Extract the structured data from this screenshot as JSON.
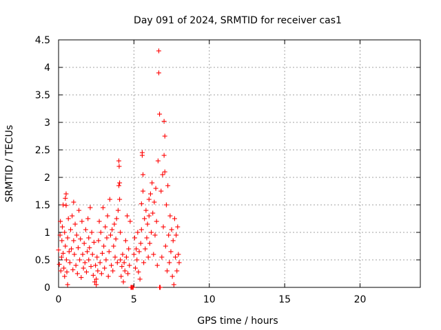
{
  "chart_data": {
    "type": "scatter",
    "title": "Day 091 of 2024, SRMTID for receiver cas1",
    "xlabel": "GPS time / hours",
    "ylabel": "SRMTID / TECUs",
    "xlim": [
      0,
      24
    ],
    "ylim": [
      0,
      4.5
    ],
    "xticks": [
      0,
      5,
      10,
      15,
      20
    ],
    "xtick_labels": [
      "0",
      "5",
      "10",
      "15",
      "20"
    ],
    "yticks": [
      0,
      0.5,
      1,
      1.5,
      2,
      2.5,
      3,
      3.5,
      4,
      4.5
    ],
    "ytick_labels": [
      "0",
      "0.5",
      "1",
      "1.5",
      "2",
      "2.5",
      "3",
      "3.5",
      "4",
      "4.5"
    ],
    "grid": true,
    "marker": "+",
    "marker_color": "#ff0000",
    "series": [
      {
        "name": "SRMTID",
        "points": [
          [
            0.0,
            0.68
          ],
          [
            0.05,
            0.42
          ],
          [
            0.1,
            0.95
          ],
          [
            0.12,
            1.2
          ],
          [
            0.15,
            0.3
          ],
          [
            0.2,
            0.55
          ],
          [
            0.22,
            0.85
          ],
          [
            0.25,
            1.1
          ],
          [
            0.3,
            1.5
          ],
          [
            0.3,
            0.62
          ],
          [
            0.35,
            0.35
          ],
          [
            0.4,
            0.2
          ],
          [
            0.4,
            1.0
          ],
          [
            0.45,
            1.62
          ],
          [
            0.45,
            0.75
          ],
          [
            0.5,
            1.7
          ],
          [
            0.5,
            1.49
          ],
          [
            0.52,
            0.5
          ],
          [
            0.55,
            0.28
          ],
          [
            0.6,
            0.9
          ],
          [
            0.6,
            0.05
          ],
          [
            0.65,
            1.25
          ],
          [
            0.7,
            0.65
          ],
          [
            0.75,
            0.45
          ],
          [
            0.8,
            1.05
          ],
          [
            0.85,
            0.7
          ],
          [
            0.9,
            1.3
          ],
          [
            0.95,
            0.32
          ],
          [
            1.0,
            0.85
          ],
          [
            1.0,
            1.55
          ],
          [
            1.05,
            0.6
          ],
          [
            1.1,
            1.15
          ],
          [
            1.15,
            0.4
          ],
          [
            1.2,
            0.95
          ],
          [
            1.25,
            0.25
          ],
          [
            1.3,
            0.72
          ],
          [
            1.35,
            1.4
          ],
          [
            1.4,
            0.5
          ],
          [
            1.45,
            0.88
          ],
          [
            1.5,
            0.18
          ],
          [
            1.55,
            1.2
          ],
          [
            1.6,
            0.6
          ],
          [
            1.65,
            0.35
          ],
          [
            1.7,
            0.8
          ],
          [
            1.75,
            0.45
          ],
          [
            1.8,
            1.05
          ],
          [
            1.85,
            0.28
          ],
          [
            1.9,
            0.65
          ],
          [
            1.95,
            1.25
          ],
          [
            2.0,
            0.5
          ],
          [
            2.0,
            0.9
          ],
          [
            2.05,
            0.72
          ],
          [
            2.1,
            1.45
          ],
          [
            2.15,
            0.38
          ],
          [
            2.2,
            1.0
          ],
          [
            2.25,
            0.6
          ],
          [
            2.3,
            0.22
          ],
          [
            2.35,
            0.82
          ],
          [
            2.4,
            0.1
          ],
          [
            2.45,
            0.4
          ],
          [
            2.5,
            0.15
          ],
          [
            2.5,
            0.05
          ],
          [
            2.55,
            0.55
          ],
          [
            2.6,
            0.3
          ],
          [
            2.65,
            0.85
          ],
          [
            2.7,
            1.2
          ],
          [
            2.75,
            0.45
          ],
          [
            2.8,
            1.0
          ],
          [
            2.85,
            0.25
          ],
          [
            2.9,
            0.62
          ],
          [
            2.95,
            1.45
          ],
          [
            3.0,
            0.75
          ],
          [
            3.05,
            0.35
          ],
          [
            3.1,
            1.1
          ],
          [
            3.15,
            0.5
          ],
          [
            3.2,
            0.9
          ],
          [
            3.25,
            1.3
          ],
          [
            3.3,
            0.2
          ],
          [
            3.35,
            0.65
          ],
          [
            3.4,
            1.6
          ],
          [
            3.45,
            0.95
          ],
          [
            3.5,
            0.4
          ],
          [
            3.55,
            1.05
          ],
          [
            3.6,
            0.3
          ],
          [
            3.65,
            0.75
          ],
          [
            3.7,
            1.15
          ],
          [
            3.75,
            0.55
          ],
          [
            3.8,
            0.88
          ],
          [
            3.85,
            1.25
          ],
          [
            3.9,
            0.45
          ],
          [
            3.95,
            1.4
          ],
          [
            4.0,
            2.3
          ],
          [
            4.0,
            1.85
          ],
          [
            4.02,
            2.2
          ],
          [
            4.05,
            1.9
          ],
          [
            4.05,
            1.6
          ],
          [
            4.1,
            0.5
          ],
          [
            4.1,
            1.0
          ],
          [
            4.15,
            0.2
          ],
          [
            4.2,
            0.38
          ],
          [
            4.25,
            0.6
          ],
          [
            4.3,
            0.1
          ],
          [
            4.35,
            0.45
          ],
          [
            4.4,
            0.3
          ],
          [
            4.45,
            0.85
          ],
          [
            4.5,
            0.55
          ],
          [
            4.55,
            1.3
          ],
          [
            4.6,
            0.25
          ],
          [
            4.65,
            0.7
          ],
          [
            4.7,
            0.4
          ],
          [
            4.75,
            1.2
          ],
          [
            4.8,
            0.0
          ],
          [
            4.85,
            0.0
          ],
          [
            4.9,
            0.0
          ],
          [
            4.95,
            0.0
          ],
          [
            5.0,
            0.6
          ],
          [
            5.05,
            0.9
          ],
          [
            5.1,
            0.35
          ],
          [
            5.15,
            0.7
          ],
          [
            5.2,
            0.5
          ],
          [
            5.25,
            1.0
          ],
          [
            5.3,
            0.28
          ],
          [
            5.35,
            0.65
          ],
          [
            5.4,
            0.15
          ],
          [
            5.45,
            0.8
          ],
          [
            5.5,
            1.05
          ],
          [
            5.5,
            1.52
          ],
          [
            5.55,
            2.45
          ],
          [
            5.55,
            2.4
          ],
          [
            5.6,
            2.05
          ],
          [
            5.6,
            1.75
          ],
          [
            5.65,
            0.45
          ],
          [
            5.7,
            1.25
          ],
          [
            5.75,
            0.7
          ],
          [
            5.8,
            1.4
          ],
          [
            5.85,
            0.9
          ],
          [
            5.9,
            1.15
          ],
          [
            5.95,
            0.55
          ],
          [
            6.0,
            1.6
          ],
          [
            6.0,
            1.3
          ],
          [
            6.05,
            0.8
          ],
          [
            6.1,
            1.7
          ],
          [
            6.15,
            1.0
          ],
          [
            6.2,
            1.9
          ],
          [
            6.25,
            1.35
          ],
          [
            6.3,
            0.6
          ],
          [
            6.35,
            1.55
          ],
          [
            6.4,
            0.95
          ],
          [
            6.45,
            1.8
          ],
          [
            6.5,
            1.2
          ],
          [
            6.55,
            0.4
          ],
          [
            6.6,
            2.3
          ],
          [
            6.65,
            4.3
          ],
          [
            6.65,
            3.9
          ],
          [
            6.7,
            3.15
          ],
          [
            6.7,
            0.0
          ],
          [
            6.75,
            0.0
          ],
          [
            6.8,
            1.75
          ],
          [
            6.85,
            0.55
          ],
          [
            6.9,
            2.05
          ],
          [
            6.95,
            1.1
          ],
          [
            7.0,
            2.4
          ],
          [
            7.0,
            3.02
          ],
          [
            7.05,
            2.75
          ],
          [
            7.05,
            2.1
          ],
          [
            7.1,
            0.75
          ],
          [
            7.15,
            1.5
          ],
          [
            7.2,
            0.3
          ],
          [
            7.25,
            1.85
          ],
          [
            7.3,
            0.95
          ],
          [
            7.35,
            0.45
          ],
          [
            7.4,
            1.3
          ],
          [
            7.45,
            0.65
          ],
          [
            7.5,
            1.05
          ],
          [
            7.55,
            0.2
          ],
          [
            7.6,
            0.85
          ],
          [
            7.65,
            0.05
          ],
          [
            7.7,
            1.25
          ],
          [
            7.75,
            0.55
          ],
          [
            7.8,
            0.95
          ],
          [
            7.85,
            0.3
          ],
          [
            7.9,
            1.1
          ],
          [
            7.95,
            0.6
          ],
          [
            8.0,
            0.45
          ]
        ]
      }
    ]
  }
}
